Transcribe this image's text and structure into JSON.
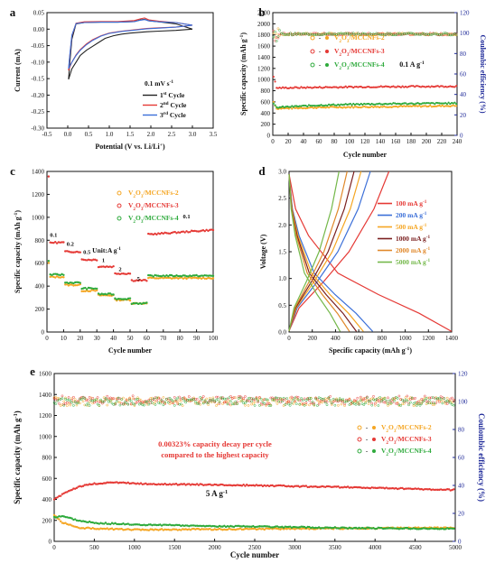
{
  "colors": {
    "black": "#222222",
    "red": "#e53935",
    "blue": "#3b6fd8",
    "orange": "#f5a623",
    "green": "#2eaa3c",
    "darkred": "#7a1f1f",
    "darkorange": "#e0882a",
    "lightgreen": "#74b84a",
    "navy": "#1f2a99"
  },
  "chart_data": [
    {
      "panel": "a",
      "type": "line",
      "xlabel": "Potential (V vs. Li/Li+)",
      "ylabel": "Current (mA)",
      "xlim": [
        -0.5,
        3.5
      ],
      "ylim": [
        -0.3,
        0.05
      ],
      "xticks": [
        "-0.5",
        "0.0",
        "0.5",
        "1.0",
        "1.5",
        "2.0",
        "2.5",
        "3.0",
        "3.5"
      ],
      "yticks": [
        "-0.30",
        "-0.25",
        "-0.20",
        "-0.15",
        "-0.10",
        "-0.05",
        "0.00",
        "0.05"
      ],
      "annotation": "0.1 mV s",
      "annotation_sup": "-1",
      "legend": [
        {
          "pre": "1",
          "sup": "st",
          "post": " Cycle"
        },
        {
          "pre": "2",
          "sup": "nd",
          "post": " Cycle"
        },
        {
          "pre": "3",
          "sup": "rd",
          "post": " Cycle"
        }
      ],
      "series": [
        {
          "color": "black",
          "points": [
            [
              3.0,
              0.0
            ],
            [
              2.6,
              -0.004
            ],
            [
              2.2,
              -0.006
            ],
            [
              1.9,
              -0.008
            ],
            [
              1.7,
              -0.01
            ],
            [
              1.5,
              -0.012
            ],
            [
              1.3,
              -0.015
            ],
            [
              1.1,
              -0.02
            ],
            [
              0.9,
              -0.028
            ],
            [
              0.75,
              -0.04
            ],
            [
              0.6,
              -0.052
            ],
            [
              0.45,
              -0.064
            ],
            [
              0.3,
              -0.08
            ],
            [
              0.2,
              -0.1
            ],
            [
              0.1,
              -0.12
            ],
            [
              0.05,
              -0.14
            ],
            [
              0.02,
              -0.152
            ],
            [
              0.05,
              -0.1
            ],
            [
              0.1,
              -0.03
            ],
            [
              0.2,
              0.016
            ],
            [
              0.4,
              0.02
            ],
            [
              0.8,
              0.021
            ],
            [
              1.2,
              0.021
            ],
            [
              1.6,
              0.023
            ],
            [
              1.75,
              0.028
            ],
            [
              1.85,
              0.03
            ],
            [
              1.95,
              0.025
            ],
            [
              2.2,
              0.022
            ],
            [
              2.6,
              0.016
            ],
            [
              3.0,
              0.0
            ]
          ]
        },
        {
          "color": "red",
          "points": [
            [
              3.0,
              0.012
            ],
            [
              2.6,
              0.006
            ],
            [
              2.2,
              0.004
            ],
            [
              1.9,
              0.002
            ],
            [
              1.6,
              -0.002
            ],
            [
              1.3,
              -0.006
            ],
            [
              1.0,
              -0.012
            ],
            [
              0.8,
              -0.02
            ],
            [
              0.6,
              -0.032
            ],
            [
              0.45,
              -0.045
            ],
            [
              0.3,
              -0.062
            ],
            [
              0.2,
              -0.078
            ],
            [
              0.1,
              -0.1
            ],
            [
              0.05,
              -0.115
            ],
            [
              0.02,
              -0.125
            ],
            [
              0.05,
              -0.08
            ],
            [
              0.1,
              -0.02
            ],
            [
              0.2,
              0.018
            ],
            [
              0.4,
              0.022
            ],
            [
              0.8,
              0.023
            ],
            [
              1.2,
              0.023
            ],
            [
              1.6,
              0.026
            ],
            [
              1.75,
              0.031
            ],
            [
              1.85,
              0.034
            ],
            [
              1.95,
              0.028
            ],
            [
              2.2,
              0.024
            ],
            [
              2.6,
              0.02
            ],
            [
              3.0,
              0.012
            ]
          ]
        },
        {
          "color": "blue",
          "points": [
            [
              3.0,
              0.012
            ],
            [
              2.6,
              0.006
            ],
            [
              2.2,
              0.003
            ],
            [
              1.9,
              0.001
            ],
            [
              1.6,
              -0.003
            ],
            [
              1.3,
              -0.007
            ],
            [
              1.0,
              -0.013
            ],
            [
              0.8,
              -0.021
            ],
            [
              0.6,
              -0.034
            ],
            [
              0.45,
              -0.047
            ],
            [
              0.3,
              -0.064
            ],
            [
              0.2,
              -0.08
            ],
            [
              0.1,
              -0.1
            ],
            [
              0.05,
              -0.112
            ],
            [
              0.02,
              -0.12
            ],
            [
              0.05,
              -0.078
            ],
            [
              0.1,
              -0.018
            ],
            [
              0.2,
              0.017
            ],
            [
              0.4,
              0.02
            ],
            [
              0.8,
              0.021
            ],
            [
              1.2,
              0.021
            ],
            [
              1.6,
              0.023
            ],
            [
              1.75,
              0.027
            ],
            [
              1.85,
              0.029
            ],
            [
              1.95,
              0.025
            ],
            [
              2.2,
              0.022
            ],
            [
              2.6,
              0.02
            ],
            [
              3.0,
              0.012
            ]
          ]
        }
      ]
    },
    {
      "panel": "b",
      "type": "scatter",
      "xlabel": "Cycle number",
      "ylabel": "Specific capacity (mAh g",
      "ylabel_sup": "-1",
      "ylabel_post": ")",
      "y2label": "Coulombic efficiency (%)",
      "xlim": [
        0,
        240
      ],
      "ylim": [
        0,
        2200
      ],
      "y2lim": [
        0,
        120
      ],
      "xticks": [
        "0",
        "20",
        "40",
        "60",
        "80",
        "100",
        "120",
        "140",
        "160",
        "180",
        "200",
        "220",
        "240"
      ],
      "yticks": [
        "0",
        "200",
        "400",
        "600",
        "800",
        "1000",
        "1200",
        "1400",
        "1600",
        "1800",
        "2000",
        "2200"
      ],
      "y2ticks": [
        "0",
        "20",
        "40",
        "60",
        "80",
        "100",
        "120"
      ],
      "annotation": "0.1 A g",
      "annotation_sup": "-1",
      "legend": [
        "V2O3/MCCNFs-2",
        "V2O3/MCCNFs-3",
        "V2O3/MCCNFs-4"
      ],
      "series": [
        {
          "name": "V2O3/MCCNFs-2",
          "color": "orange",
          "capacity": [
            [
              1,
              600
            ],
            [
              5,
              480
            ],
            [
              60,
              500
            ],
            [
              120,
              510
            ],
            [
              180,
              520
            ],
            [
              240,
              530
            ]
          ],
          "ce": 99
        },
        {
          "name": "V2O3/MCCNFs-3",
          "color": "red",
          "capacity": [
            [
              1,
              1060
            ],
            [
              5,
              850
            ],
            [
              60,
              860
            ],
            [
              120,
              870
            ],
            [
              180,
              875
            ],
            [
              240,
              880
            ]
          ],
          "ce": 99
        },
        {
          "name": "V2O3/MCCNFs-4",
          "color": "green",
          "capacity": [
            [
              1,
              560
            ],
            [
              5,
              500
            ],
            [
              60,
              540
            ],
            [
              120,
              560
            ],
            [
              180,
              570
            ],
            [
              240,
              575
            ]
          ],
          "ce": 99
        }
      ]
    },
    {
      "panel": "c",
      "type": "scatter",
      "xlabel": "Cycle number",
      "ylabel": "Specific capacity (mAh g",
      "ylabel_sup": "-1",
      "ylabel_post": ")",
      "xlim": [
        0,
        100
      ],
      "ylim": [
        0,
        1400
      ],
      "xticks": [
        "0",
        "10",
        "20",
        "30",
        "40",
        "50",
        "60",
        "70",
        "80",
        "90",
        "100"
      ],
      "yticks": [
        "0",
        "200",
        "400",
        "600",
        "800",
        "1000",
        "1200",
        "1400"
      ],
      "annotation": "Unit:A g",
      "annotation_sup": "-1",
      "rates": [
        {
          "label": "0.1",
          "x": 4,
          "y": 830
        },
        {
          "label": "0.2",
          "x": 14,
          "y": 750
        },
        {
          "label": "0.5",
          "x": 24,
          "y": 680
        },
        {
          "label": "1",
          "x": 34,
          "y": 610
        },
        {
          "label": "2",
          "x": 44,
          "y": 530
        },
        {
          "label": "5",
          "x": 55,
          "y": 450
        },
        {
          "label": "0.1",
          "x": 84,
          "y": 990
        }
      ],
      "legend": [
        "V2O3/MCCNFs-2",
        "V2O3/MCCNFs-3",
        "V2O3/MCCNFs-4"
      ],
      "series": [
        {
          "name": "V2O3/MCCNFs-2",
          "color": "orange",
          "levels": [
            [
              1,
              10,
              480
            ],
            [
              11,
              20,
              410
            ],
            [
              21,
              30,
              360
            ],
            [
              31,
              40,
              320
            ],
            [
              41,
              50,
              280
            ],
            [
              51,
              60,
              250
            ],
            [
              61,
              100,
              470
            ]
          ],
          "first": 600
        },
        {
          "name": "V2O3/MCCNFs-3",
          "color": "red",
          "levels": [
            [
              1,
              10,
              780
            ],
            [
              11,
              20,
              700
            ],
            [
              21,
              30,
              630
            ],
            [
              31,
              40,
              570
            ],
            [
              41,
              50,
              510
            ],
            [
              51,
              60,
              450
            ],
            [
              61,
              100,
              850
            ]
          ],
          "first": 1350,
          "end": 890
        },
        {
          "name": "V2O3/MCCNFs-4",
          "color": "green",
          "levels": [
            [
              1,
              10,
              500
            ],
            [
              11,
              20,
              430
            ],
            [
              21,
              30,
              380
            ],
            [
              31,
              40,
              330
            ],
            [
              41,
              50,
              290
            ],
            [
              51,
              60,
              250
            ],
            [
              61,
              100,
              490
            ]
          ],
          "first": 620
        }
      ]
    },
    {
      "panel": "d",
      "type": "line",
      "xlabel": "Specific capacity (mAh g",
      "xlabel_sup": "-1",
      "xlabel_post": ")",
      "ylabel": "Voltage (V)",
      "xlim": [
        0,
        1400
      ],
      "ylim": [
        0,
        3.0
      ],
      "xticks": [
        "0",
        "200",
        "400",
        "600",
        "800",
        "1000",
        "1200",
        "1400"
      ],
      "yticks": [
        "0.0",
        "0.5",
        "1.0",
        "1.5",
        "2.0",
        "2.5",
        "3.0"
      ],
      "legend": [
        {
          "label": "100 mA g",
          "sup": "-1",
          "color": "red"
        },
        {
          "label": "200 mA g",
          "sup": "-1",
          "color": "blue"
        },
        {
          "label": "500 mA g",
          "sup": "-1",
          "color": "orange"
        },
        {
          "label": "1000 mA g",
          "sup": "-1",
          "color": "darkred"
        },
        {
          "label": "2000 mA g",
          "sup": "-1",
          "color": "darkorange"
        },
        {
          "label": "5000 mA g",
          "sup": "-1",
          "color": "lightgreen"
        }
      ],
      "series": [
        {
          "color": "red",
          "discharge": 1400,
          "charge": 860
        },
        {
          "color": "blue",
          "discharge": 720,
          "charge": 700
        },
        {
          "color": "orange",
          "discharge": 640,
          "charge": 620
        },
        {
          "color": "darkred",
          "discharge": 580,
          "charge": 560
        },
        {
          "color": "darkorange",
          "discharge": 520,
          "charge": 500
        },
        {
          "color": "lightgreen",
          "discharge": 440,
          "charge": 430
        }
      ]
    },
    {
      "panel": "e",
      "type": "scatter",
      "xlabel": "Cycle number",
      "ylabel": "Specific capacity (mAh g",
      "ylabel_sup": "-1",
      "ylabel_post": ")",
      "y2label": "Coulombic efficiency (%)",
      "xlim": [
        0,
        5000
      ],
      "ylim": [
        0,
        1600
      ],
      "y2lim": [
        0,
        120
      ],
      "xticks": [
        "0",
        "500",
        "1000",
        "1500",
        "2000",
        "2500",
        "3000",
        "3500",
        "4000",
        "4500",
        "5000"
      ],
      "yticks": [
        "0",
        "200",
        "400",
        "600",
        "800",
        "1000",
        "1200",
        "1400",
        "1600"
      ],
      "y2ticks": [
        "0",
        "20",
        "40",
        "60",
        "80",
        "100",
        "120"
      ],
      "annotation_line1": "0.00323% capacity decay per cycle",
      "annotation_line2": "compared to the highest capacity",
      "rate": "5 A g",
      "rate_sup": "-1",
      "legend": [
        "V2O3/MCCNFs-2",
        "V2O3/MCCNFs-3",
        "V2O3/MCCNFs-4"
      ],
      "series": [
        {
          "name": "V2O3/MCCNFs-2",
          "color": "orange",
          "capacity": [
            [
              1,
              250
            ],
            [
              100,
              180
            ],
            [
              300,
              130
            ],
            [
              600,
              120
            ],
            [
              1000,
              110
            ],
            [
              2000,
              115
            ],
            [
              3000,
              120
            ],
            [
              4000,
              125
            ],
            [
              5000,
              130
            ]
          ],
          "ce": 100
        },
        {
          "name": "V2O3/MCCNFs-3",
          "color": "red",
          "capacity": [
            [
              1,
              400
            ],
            [
              150,
              470
            ],
            [
              300,
              520
            ],
            [
              500,
              550
            ],
            [
              800,
              560
            ],
            [
              1200,
              545
            ],
            [
              2000,
              540
            ],
            [
              3000,
              525
            ],
            [
              4000,
              510
            ],
            [
              5000,
              490
            ]
          ],
          "ce": 101
        },
        {
          "name": "V2O3/MCCNFs-4",
          "color": "green",
          "capacity": [
            [
              1,
              230
            ],
            [
              100,
              240
            ],
            [
              300,
              200
            ],
            [
              500,
              175
            ],
            [
              1000,
              160
            ],
            [
              2000,
              145
            ],
            [
              3000,
              135
            ],
            [
              4000,
              125
            ],
            [
              5000,
              120
            ]
          ],
          "ce": 100
        }
      ]
    }
  ],
  "panels": {
    "a": "a",
    "b": "b",
    "c": "c",
    "d": "d",
    "e": "e"
  }
}
